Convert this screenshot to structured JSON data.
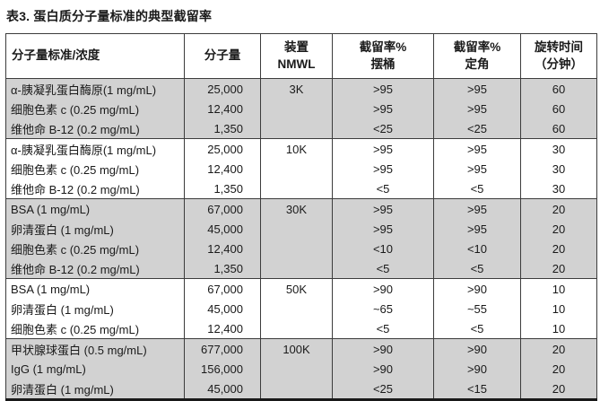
{
  "title": "表3. 蛋白质分子量标准的典型截留率",
  "table": {
    "columns": [
      {
        "label": "分子量标准/浓度"
      },
      {
        "label": "分子量"
      },
      {
        "line1": "装置",
        "line2": "NMWL"
      },
      {
        "line1": "截留率%",
        "line2": "摆桶"
      },
      {
        "line1": "截留率%",
        "line2": "定角"
      },
      {
        "line1": "旋转时间",
        "line2": "（分钟）"
      }
    ],
    "groups": [
      {
        "nmwl": "3K",
        "shaded": true,
        "rows": [
          {
            "standard": "α-胰凝乳蛋白酶原(1 mg/mL)",
            "mw": "25,000",
            "swing": ">95",
            "fixed": ">95",
            "time": "60"
          },
          {
            "standard": "细胞色素 c (0.25 mg/mL)",
            "mw": "12,400",
            "swing": ">95",
            "fixed": ">95",
            "time": "60"
          },
          {
            "standard": "维他命 B-12 (0.2 mg/mL)",
            "mw": "1,350",
            "swing": "<25",
            "fixed": "<25",
            "time": "60"
          }
        ]
      },
      {
        "nmwl": "10K",
        "shaded": false,
        "rows": [
          {
            "standard": "α-胰凝乳蛋白酶原(1 mg/mL)",
            "mw": "25,000",
            "swing": ">95",
            "fixed": ">95",
            "time": "30"
          },
          {
            "standard": "细胞色素 c (0.25 mg/mL)",
            "mw": "12,400",
            "swing": ">95",
            "fixed": ">95",
            "time": "30"
          },
          {
            "standard": "维他命 B-12 (0.2 mg/mL)",
            "mw": "1,350",
            "swing": "<5",
            "fixed": "<5",
            "time": "30"
          }
        ]
      },
      {
        "nmwl": "30K",
        "shaded": true,
        "rows": [
          {
            "standard": "BSA (1 mg/mL)",
            "mw": "67,000",
            "swing": ">95",
            "fixed": ">95",
            "time": "20"
          },
          {
            "standard": "卵清蛋白 (1 mg/mL)",
            "mw": "45,000",
            "swing": ">95",
            "fixed": ">95",
            "time": "20"
          },
          {
            "standard": "细胞色素 c (0.25 mg/mL)",
            "mw": "12,400",
            "swing": "<10",
            "fixed": "<10",
            "time": "20"
          },
          {
            "standard": "维他命 B-12 (0.2 mg/mL)",
            "mw": "1,350",
            "swing": "<5",
            "fixed": "<5",
            "time": "20"
          }
        ]
      },
      {
        "nmwl": "50K",
        "shaded": false,
        "rows": [
          {
            "standard": "BSA (1 mg/mL)",
            "mw": "67,000",
            "swing": ">90",
            "fixed": ">90",
            "time": "10"
          },
          {
            "standard": "卵清蛋白 (1 mg/mL)",
            "mw": "45,000",
            "swing": "~65",
            "fixed": "~55",
            "time": "10"
          },
          {
            "standard": "细胞色素 c (0.25 mg/mL)",
            "mw": "12,400",
            "swing": "<5",
            "fixed": "<5",
            "time": "10"
          }
        ]
      },
      {
        "nmwl": "100K",
        "shaded": true,
        "rows": [
          {
            "standard": "甲状腺球蛋白 (0.5 mg/mL)",
            "mw": "677,000",
            "swing": ">90",
            "fixed": ">90",
            "time": "20"
          },
          {
            "standard": "IgG (1 mg/mL)",
            "mw": "156,000",
            "swing": ">90",
            "fixed": ">90",
            "time": "20"
          },
          {
            "standard": "卵清蛋白 (1 mg/mL)",
            "mw": "45,000",
            "swing": "<25",
            "fixed": "<15",
            "time": "20"
          }
        ]
      }
    ]
  },
  "colors": {
    "shaded_row": "#d2d2d2",
    "border": "#3c3c3c",
    "text": "#1a1a1a"
  }
}
